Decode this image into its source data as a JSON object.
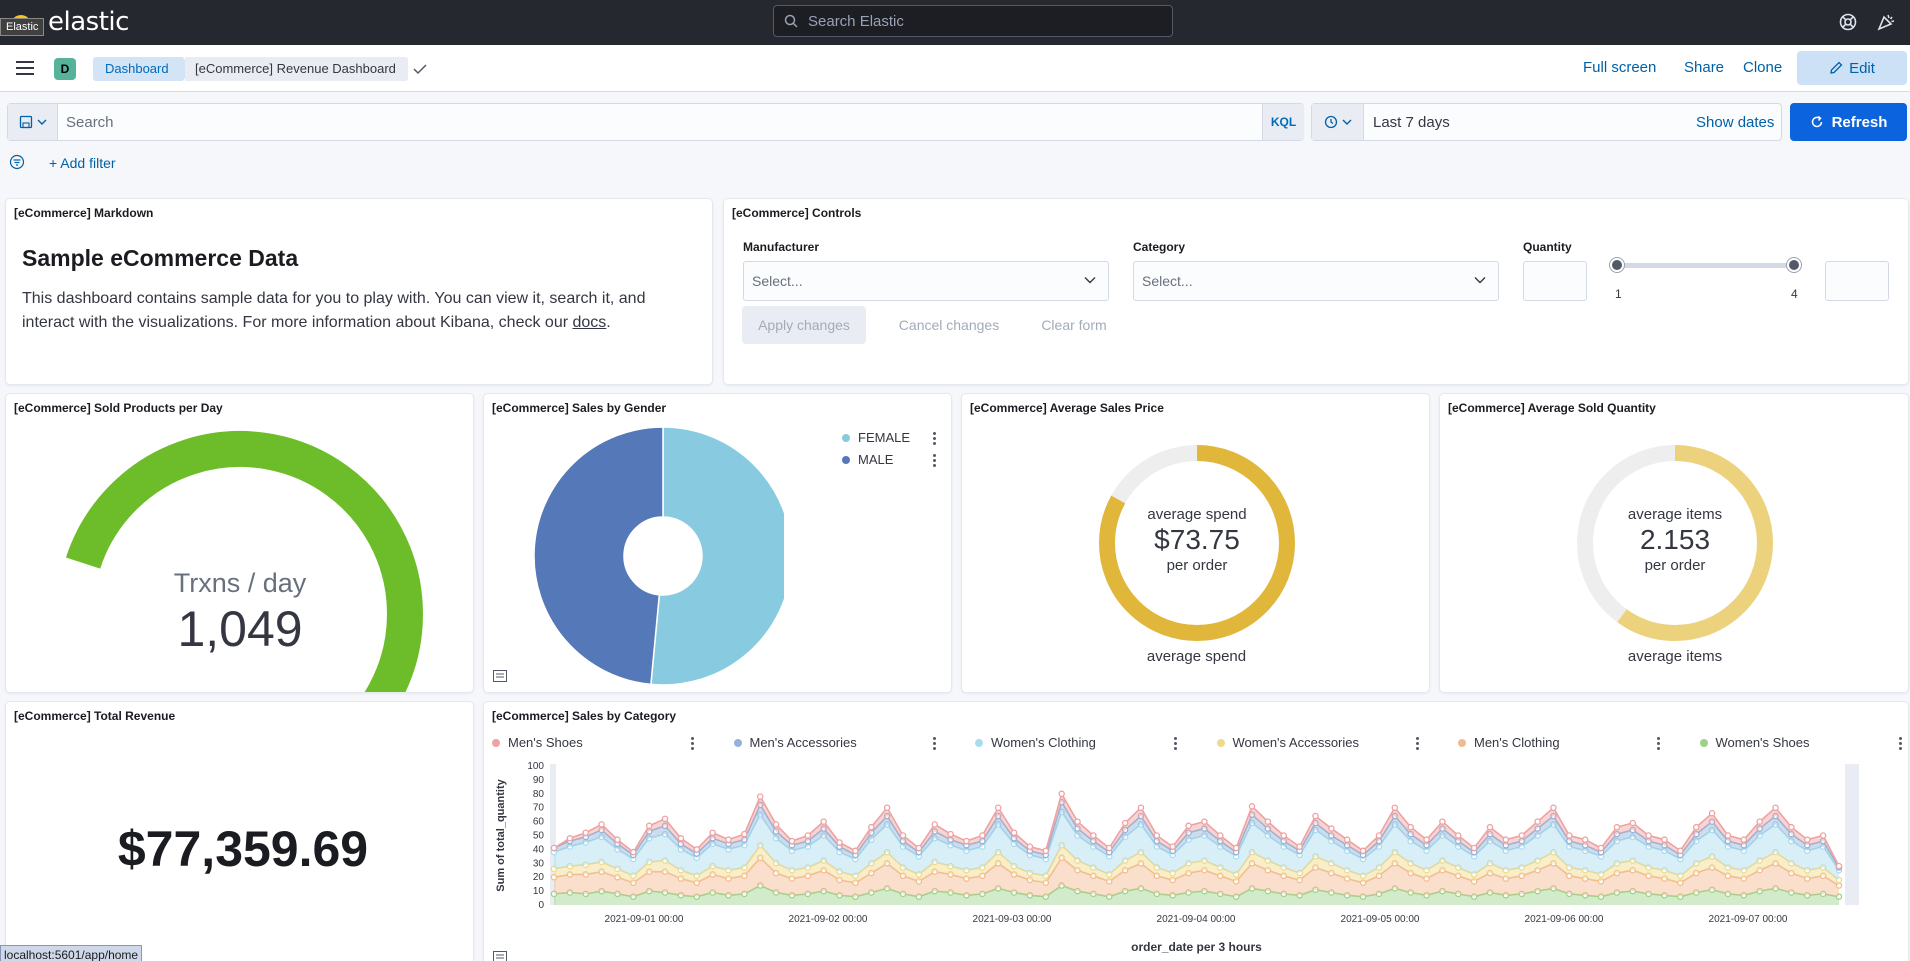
{
  "header": {
    "brand": "elastic",
    "brand_tooltip": "Elastic",
    "search_placeholder": "Search Elastic"
  },
  "nav": {
    "space_letter": "D",
    "breadcrumbs": [
      "Dashboard",
      "[eCommerce] Revenue Dashboard"
    ],
    "actions": [
      "Full screen",
      "Share",
      "Clone"
    ],
    "edit_label": "Edit"
  },
  "query": {
    "placeholder": "Search",
    "language": "KQL",
    "date_range": "Last 7 days",
    "show_dates": "Show dates",
    "refresh": "Refresh",
    "add_filter": "+ Add filter"
  },
  "panels": {
    "markdown": {
      "title": "[eCommerce] Markdown",
      "heading": "Sample eCommerce Data",
      "body": "This dashboard contains sample data for you to play with. You can view it, search it, and interact with the visualizations. For more information about Kibana, check our",
      "link": "docs",
      "end": "."
    },
    "controls": {
      "title": "[eCommerce] Controls",
      "manufacturer_label": "Manufacturer",
      "category_label": "Category",
      "quantity_label": "Quantity",
      "select_placeholder": "Select...",
      "slider_min": "1",
      "slider_max": "4",
      "apply": "Apply changes",
      "cancel": "Cancel changes",
      "clear": "Clear form"
    },
    "sold_per_day": {
      "title": "[eCommerce] Sold Products per Day",
      "label": "Trxns / day",
      "value": "1,049",
      "gauge_fraction": 1.0,
      "color": "#6dbd2a"
    },
    "sales_by_gender": {
      "title": "[eCommerce] Sales by Gender",
      "slices": [
        {
          "name": "FEMALE",
          "value": 51.5,
          "color": "#88cbe0"
        },
        {
          "name": "MALE",
          "value": 48.5,
          "color": "#5578b8"
        }
      ]
    },
    "avg_price": {
      "title": "[eCommerce] Average Sales Price",
      "top": "average spend",
      "value": "$73.75",
      "bottom": "per order",
      "caption": "average spend",
      "fraction": 0.83,
      "color": "#e0b73a"
    },
    "avg_quantity": {
      "title": "[eCommerce] Average Sold Quantity",
      "top": "average items",
      "value": "2.153",
      "bottom": "per order",
      "caption": "average items",
      "fraction": 0.6,
      "color": "#edd27d"
    },
    "total_revenue": {
      "title": "[eCommerce] Total Revenue",
      "value": "$77,359.69"
    },
    "sales_by_category": {
      "title": "[eCommerce] Sales by Category"
    }
  },
  "chart_data": {
    "type": "area",
    "stacked": true,
    "xlabel": "order_date per 3 hours",
    "ylabel": "Sum of total_quantity",
    "ylim": [
      0,
      100
    ],
    "yticks": [
      0,
      10,
      20,
      30,
      40,
      50,
      60,
      70,
      80,
      90,
      100
    ],
    "x_tick_labels": [
      "2021-09-01 00:00",
      "2021-09-02 00:00",
      "2021-09-03 00:00",
      "2021-09-04 00:00",
      "2021-09-05 00:00",
      "2021-09-06 00:00",
      "2021-09-07 00:00"
    ],
    "series": [
      {
        "name": "Women's Shoes",
        "color": "#9bd38a",
        "values": [
          8,
          9,
          8,
          10,
          8,
          6,
          10,
          9,
          7,
          6,
          9,
          7,
          8,
          14,
          9,
          7,
          8,
          10,
          7,
          6,
          9,
          12,
          8,
          6,
          10,
          9,
          7,
          8,
          12,
          9,
          7,
          6,
          14,
          10,
          8,
          6,
          10,
          12,
          8,
          7,
          9,
          10,
          8,
          6,
          12,
          10,
          8,
          7,
          11,
          9,
          7,
          6,
          8,
          12,
          9,
          7,
          10,
          8,
          6,
          9,
          7,
          8,
          10,
          12,
          8,
          7,
          6,
          9,
          10,
          8,
          7,
          6,
          9,
          11,
          8,
          7,
          10,
          12,
          9,
          7,
          8,
          6
        ]
      },
      {
        "name": "Men's Clothing",
        "color": "#f3b990",
        "values": [
          12,
          13,
          14,
          14,
          12,
          10,
          14,
          15,
          12,
          10,
          13,
          12,
          13,
          20,
          14,
          12,
          13,
          15,
          11,
          10,
          14,
          18,
          13,
          11,
          14,
          13,
          12,
          13,
          18,
          13,
          11,
          10,
          20,
          15,
          13,
          11,
          15,
          18,
          13,
          11,
          14,
          15,
          13,
          11,
          18,
          15,
          13,
          11,
          16,
          14,
          12,
          10,
          13,
          18,
          14,
          12,
          15,
          13,
          11,
          14,
          12,
          13,
          15,
          18,
          13,
          12,
          11,
          14,
          15,
          13,
          12,
          10,
          14,
          16,
          13,
          12,
          15,
          18,
          14,
          12,
          13,
          8
        ]
      },
      {
        "name": "Women's Accessories",
        "color": "#f0d98a",
        "values": [
          6,
          6,
          7,
          7,
          6,
          5,
          7,
          8,
          6,
          5,
          6,
          6,
          6,
          9,
          7,
          6,
          6,
          7,
          6,
          5,
          7,
          8,
          6,
          5,
          7,
          6,
          6,
          6,
          8,
          6,
          5,
          5,
          9,
          7,
          6,
          5,
          7,
          8,
          6,
          5,
          7,
          7,
          6,
          5,
          8,
          7,
          6,
          5,
          8,
          7,
          6,
          5,
          6,
          8,
          7,
          6,
          7,
          6,
          5,
          7,
          6,
          6,
          7,
          8,
          6,
          6,
          5,
          7,
          7,
          6,
          6,
          5,
          7,
          8,
          6,
          6,
          7,
          8,
          7,
          6,
          6,
          4
        ]
      },
      {
        "name": "Women's Clothing",
        "color": "#a9dcee",
        "values": [
          12,
          14,
          16,
          18,
          14,
          12,
          17,
          19,
          15,
          13,
          16,
          15,
          16,
          22,
          18,
          14,
          15,
          18,
          14,
          12,
          17,
          20,
          15,
          13,
          17,
          15,
          14,
          15,
          20,
          16,
          13,
          12,
          24,
          18,
          15,
          13,
          17,
          20,
          15,
          13,
          17,
          18,
          15,
          13,
          21,
          18,
          15,
          13,
          19,
          16,
          14,
          12,
          15,
          20,
          16,
          14,
          18,
          15,
          13,
          16,
          14,
          15,
          18,
          20,
          15,
          14,
          13,
          16,
          17,
          15,
          14,
          12,
          16,
          19,
          15,
          14,
          18,
          20,
          16,
          14,
          15,
          7
        ]
      },
      {
        "name": "Men's Accessories",
        "color": "#93b4d8",
        "values": [
          3,
          4,
          4,
          5,
          4,
          3,
          5,
          6,
          4,
          3,
          4,
          4,
          4,
          7,
          5,
          4,
          4,
          5,
          4,
          3,
          5,
          6,
          4,
          3,
          5,
          4,
          4,
          4,
          6,
          4,
          3,
          3,
          7,
          5,
          4,
          3,
          5,
          6,
          4,
          3,
          5,
          5,
          4,
          3,
          6,
          5,
          4,
          3,
          5,
          4,
          4,
          3,
          4,
          6,
          5,
          4,
          5,
          4,
          3,
          5,
          4,
          4,
          5,
          6,
          4,
          4,
          3,
          5,
          5,
          4,
          4,
          3,
          5,
          6,
          4,
          4,
          5,
          6,
          5,
          4,
          4,
          2
        ]
      },
      {
        "name": "Men's Shoes",
        "color": "#f0a1a1",
        "values": [
          0,
          2,
          3,
          4,
          3,
          2,
          4,
          5,
          4,
          3,
          4,
          3,
          4,
          6,
          5,
          3,
          4,
          5,
          3,
          3,
          4,
          6,
          4,
          3,
          5,
          4,
          3,
          4,
          6,
          4,
          3,
          3,
          6,
          5,
          4,
          3,
          5,
          6,
          4,
          3,
          5,
          5,
          4,
          3,
          6,
          5,
          4,
          3,
          5,
          5,
          4,
          3,
          4,
          6,
          5,
          4,
          5,
          4,
          3,
          5,
          4,
          4,
          5,
          6,
          4,
          4,
          3,
          5,
          5,
          4,
          4,
          3,
          5,
          6,
          4,
          4,
          5,
          6,
          5,
          4,
          4,
          1
        ]
      }
    ],
    "legend_order": [
      "Men's Shoes",
      "Men's Accessories",
      "Women's Clothing",
      "Women's Accessories",
      "Men's Clothing",
      "Women's Shoes"
    ],
    "legend_position": "top"
  },
  "status_url": "localhost:5601/app/home"
}
